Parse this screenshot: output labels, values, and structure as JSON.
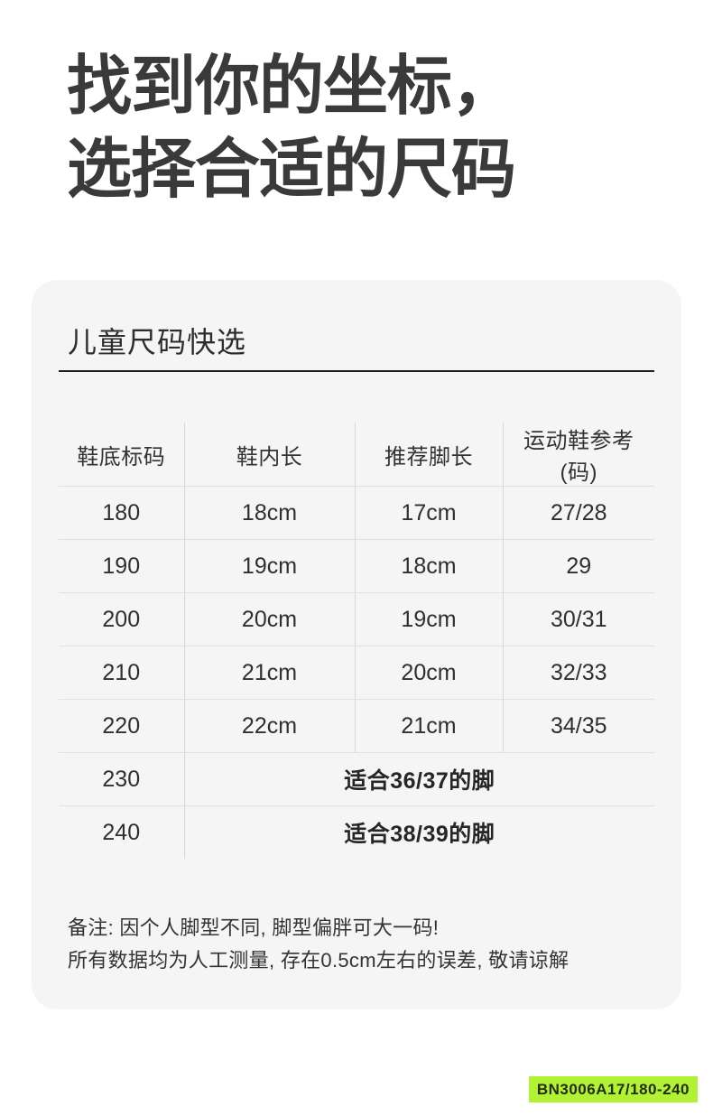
{
  "heading": {
    "line1": "找到你的坐标，",
    "line2": "选择合适的尺码"
  },
  "card": {
    "title": "儿童尺码快选",
    "table": {
      "headers": [
        "鞋底标码",
        "鞋内长",
        "推荐脚长",
        "运动鞋参考 (码)"
      ],
      "rows": [
        {
          "cells": [
            "180",
            "18cm",
            "17cm",
            "27/28"
          ]
        },
        {
          "cells": [
            "190",
            "19cm",
            "18cm",
            "29"
          ]
        },
        {
          "cells": [
            "200",
            "20cm",
            "19cm",
            "30/31"
          ]
        },
        {
          "cells": [
            "210",
            "21cm",
            "20cm",
            "32/33"
          ]
        },
        {
          "cells": [
            "220",
            "22cm",
            "21cm",
            "34/35"
          ]
        },
        {
          "cells": [
            "230"
          ],
          "merged": "适合36/37的脚"
        },
        {
          "cells": [
            "240"
          ],
          "merged": "适合38/39的脚"
        }
      ]
    },
    "notes": [
      "备注: 因个人脚型不同, 脚型偏胖可大一码!",
      "所有数据均为人工测量, 存在0.5cm左右的误差, 敬请谅解"
    ]
  },
  "badge": {
    "label": "BN3006A17/180-240"
  },
  "colors": {
    "heading_text": "#3a3a3a",
    "card_background": "#f5f5f5",
    "title_rule": "#1f1f1f",
    "row_divider": "#e0e0e0",
    "column_divider": "#d8d8d8",
    "cell_text": "#2f2f2f",
    "badge_background": "#b2f235",
    "badge_text": "#1f2d05"
  }
}
